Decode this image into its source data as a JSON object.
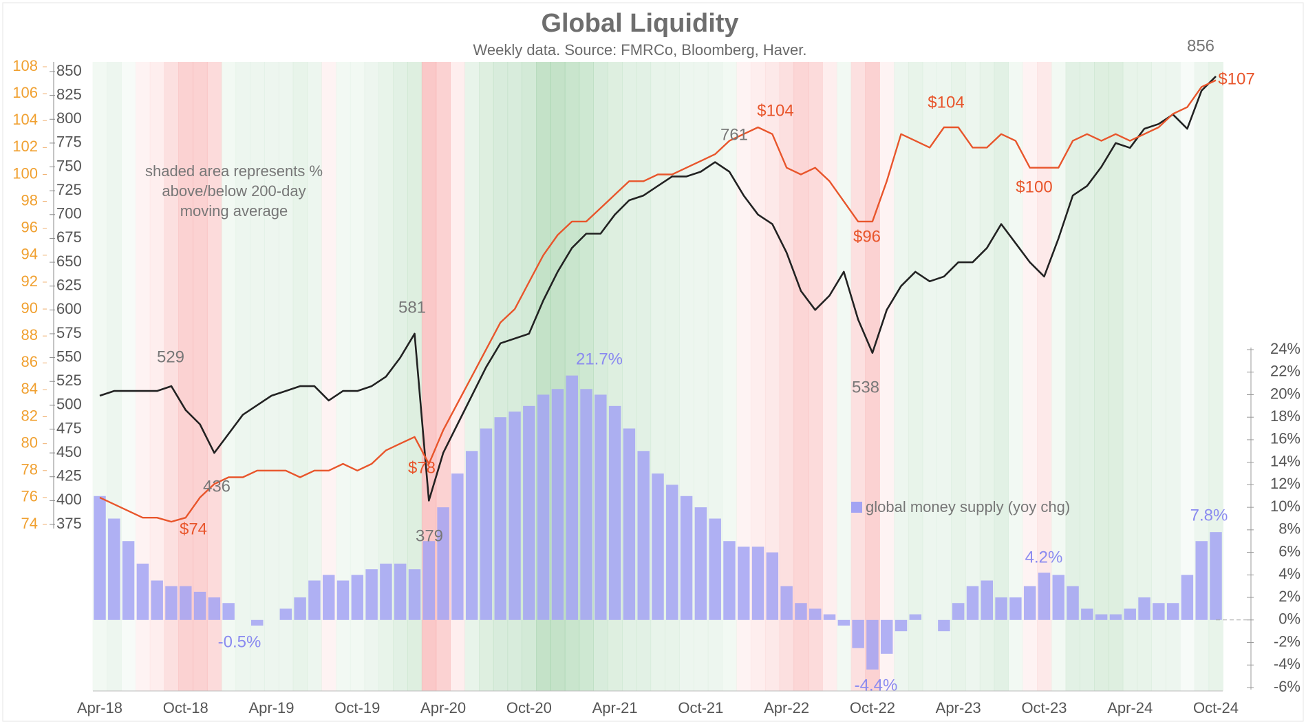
{
  "chart_data": {
    "type": "line",
    "title": "Global Liquidity",
    "subtitle": "Weekly data.  Source: FMRCo, Bloomberg, Haver.",
    "note": [
      "shaded area represents %",
      "above/below 200-day",
      "moving average"
    ],
    "categories": [
      "Apr-18",
      null,
      null,
      null,
      null,
      null,
      "Oct-18",
      null,
      null,
      null,
      null,
      null,
      "Apr-19",
      null,
      null,
      null,
      null,
      null,
      "Oct-19",
      null,
      null,
      null,
      null,
      null,
      "Apr-20",
      null,
      null,
      null,
      null,
      null,
      "Oct-20",
      null,
      null,
      null,
      null,
      null,
      "Apr-21",
      null,
      null,
      null,
      null,
      null,
      "Oct-21",
      null,
      null,
      null,
      null,
      null,
      "Apr-22",
      null,
      null,
      null,
      null,
      null,
      "Oct-22",
      null,
      null,
      null,
      null,
      null,
      "Apr-23",
      null,
      null,
      null,
      null,
      null,
      "Oct-23",
      null,
      null,
      null,
      null,
      null,
      "Apr-24",
      null,
      null,
      null,
      null,
      null,
      "Oct-24"
    ],
    "shading": {
      "positive_color": "#3aa04a",
      "negative_color": "#f04848",
      "values": [
        1,
        2,
        0,
        -1,
        -2,
        -5,
        -8,
        -8,
        -6,
        1,
        2,
        2,
        2,
        2,
        3,
        2,
        -1,
        1,
        1,
        2,
        3,
        4,
        5,
        -10,
        -8,
        -2,
        3,
        5,
        6,
        6,
        7,
        10,
        10,
        9,
        8,
        6,
        5,
        4,
        4,
        3,
        3,
        2,
        2,
        2,
        1,
        -1,
        -2,
        -3,
        -5,
        -7,
        -6,
        -2,
        1,
        -5,
        -8,
        -1,
        2,
        3,
        2,
        2,
        3,
        2,
        3,
        4,
        1,
        -1,
        -3,
        1,
        4,
        4,
        5,
        5,
        3,
        3,
        2,
        2,
        0,
        2,
        3
      ]
    },
    "series": [
      {
        "name": "global money supply (yoy chg)",
        "type": "bar",
        "axis": "y3",
        "color": "#a3a3f3",
        "values": [
          11,
          9,
          7,
          5,
          3.5,
          3,
          3,
          2.5,
          2,
          1.5,
          0,
          -0.5,
          0,
          1,
          2,
          3.5,
          4,
          3.5,
          4,
          4.5,
          5,
          5,
          4.5,
          7,
          10,
          13,
          15,
          17,
          18,
          18.5,
          19,
          20,
          20.5,
          21.7,
          20.5,
          20,
          19,
          17,
          15,
          13,
          12,
          11,
          10,
          9,
          7,
          6.5,
          6.5,
          6,
          3,
          1.5,
          1,
          0.5,
          -0.5,
          -2.5,
          -4.4,
          -3,
          -1,
          0.5,
          0,
          -1,
          1.5,
          3,
          3.5,
          2,
          2,
          3,
          4.2,
          4,
          3,
          1,
          0.5,
          0.5,
          1,
          2,
          1.5,
          1.5,
          4,
          7,
          7.8
        ]
      },
      {
        "type": "line",
        "axis": "y",
        "color": "#222222",
        "values": [
          510,
          515,
          515,
          515,
          515,
          520,
          495,
          480,
          450,
          470,
          490,
          500,
          510,
          515,
          520,
          520,
          505,
          515,
          515,
          520,
          530,
          550,
          575,
          400,
          450,
          480,
          510,
          540,
          565,
          570,
          575,
          610,
          640,
          665,
          680,
          680,
          700,
          715,
          720,
          730,
          740,
          740,
          745,
          755,
          745,
          720,
          700,
          690,
          660,
          620,
          600,
          615,
          640,
          590,
          555,
          600,
          625,
          640,
          630,
          635,
          650,
          650,
          665,
          690,
          670,
          650,
          635,
          675,
          720,
          730,
          750,
          775,
          770,
          790,
          795,
          805,
          790,
          830,
          845
        ]
      },
      {
        "type": "line",
        "axis": "y2",
        "color": "#e8552b",
        "values": [
          76,
          75.5,
          75,
          74.5,
          74.5,
          74.2,
          74.5,
          76,
          77,
          77.5,
          77.5,
          78,
          78,
          78,
          77.5,
          78,
          78,
          78.5,
          78,
          78.5,
          79.5,
          80,
          80.5,
          78.5,
          81,
          83,
          85,
          87,
          89,
          90,
          92,
          94,
          95.5,
          96.5,
          96.5,
          97.5,
          98.5,
          99.5,
          99.5,
          100,
          100,
          100.5,
          101,
          101.5,
          102.5,
          103,
          103.5,
          103,
          100.5,
          100,
          100.5,
          99.5,
          98,
          96.5,
          96.5,
          99.5,
          103,
          102.5,
          102,
          103.5,
          103.5,
          102,
          102,
          103,
          102.5,
          100.5,
          100.5,
          100.5,
          102.5,
          103,
          102.5,
          103,
          102.5,
          103,
          103.5,
          104.5,
          105,
          106.5,
          107
        ]
      }
    ],
    "ylim": [
      375,
      850
    ],
    "yticks": [
      375,
      400,
      425,
      450,
      475,
      500,
      525,
      550,
      575,
      600,
      625,
      650,
      675,
      700,
      725,
      750,
      775,
      800,
      825,
      850
    ],
    "y2lim": [
      74,
      108
    ],
    "y2ticks": [
      74,
      76,
      78,
      80,
      82,
      84,
      86,
      88,
      90,
      92,
      94,
      96,
      98,
      100,
      102,
      104,
      106,
      108
    ],
    "y3lim": [
      -6,
      24
    ],
    "y3ticks": [
      {
        "value": -6,
        "label": "-6%"
      },
      {
        "value": -4,
        "label": "-4%"
      },
      {
        "value": -2,
        "label": "-2%"
      },
      {
        "value": 0,
        "label": "0%"
      },
      {
        "value": 2,
        "label": "2%"
      },
      {
        "value": 4,
        "label": "4%"
      },
      {
        "value": 6,
        "label": "6%"
      },
      {
        "value": 8,
        "label": "8%"
      },
      {
        "value": 10,
        "label": "10%"
      },
      {
        "value": 12,
        "label": "12%"
      },
      {
        "value": 14,
        "label": "14%"
      },
      {
        "value": 16,
        "label": "16%"
      },
      {
        "value": 18,
        "label": "18%"
      },
      {
        "value": 20,
        "label": "20%"
      },
      {
        "value": 22,
        "label": "22%"
      },
      {
        "value": 24,
        "label": "24%"
      }
    ],
    "annotations": [
      "529",
      "436",
      "581",
      "379",
      "761",
      "538",
      "856",
      "$74",
      "$78",
      "$104",
      "$104",
      "$96",
      "$100",
      "$107",
      "21.7%",
      "-0.5%",
      "-4.4%",
      "4.2%",
      "7.8%"
    ]
  }
}
